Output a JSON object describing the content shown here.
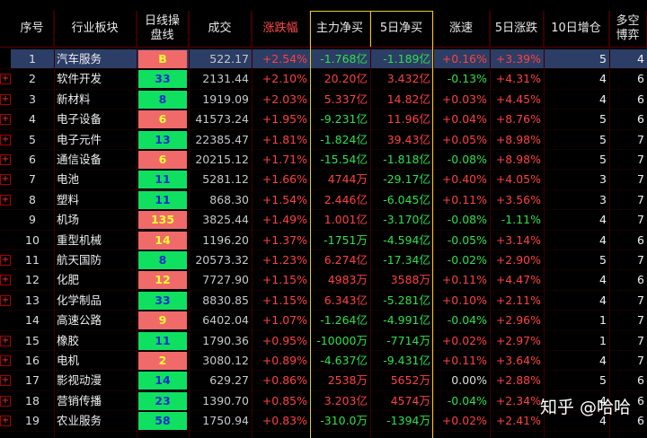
{
  "table": {
    "headers": [
      "序号",
      "行业板块",
      "日线操\n盘线",
      "成交",
      "涨跌幅",
      "主力净买",
      "5日净买",
      "涨速",
      "5日涨跌",
      "10日增仓",
      "多空\n博弈"
    ],
    "rows": [
      {
        "selected": true,
        "expandable": false,
        "line_color": "red",
        "cells": [
          "1",
          "汽车服务",
          "B",
          "522.17",
          "+2.54%",
          "-1.768亿",
          "-1.189亿",
          "+0.16%",
          "+3.39%",
          "5",
          "4"
        ]
      },
      {
        "expandable": true,
        "line_color": "green",
        "cells": [
          "2",
          "软件开发",
          "33",
          "2131.44",
          "+2.10%",
          "20.20亿",
          "3.432亿",
          "-0.13%",
          "+4.31%",
          "4",
          "6"
        ]
      },
      {
        "expandable": true,
        "line_color": "green",
        "cells": [
          "3",
          "新材料",
          "8",
          "1919.09",
          "+2.03%",
          "5.337亿",
          "14.82亿",
          "+0.03%",
          "+4.45%",
          "4",
          "6"
        ]
      },
      {
        "expandable": true,
        "line_color": "red",
        "cells": [
          "4",
          "电子设备",
          "6",
          "41573.24",
          "+1.95%",
          "-9.231亿",
          "11.96亿",
          "+0.04%",
          "+8.76%",
          "5",
          "6"
        ]
      },
      {
        "expandable": true,
        "line_color": "green",
        "cells": [
          "5",
          "电子元件",
          "13",
          "22385.47",
          "+1.81%",
          "-1.824亿",
          "39.43亿",
          "+0.05%",
          "+8.98%",
          "5",
          "7"
        ]
      },
      {
        "expandable": true,
        "line_color": "red",
        "cells": [
          "6",
          "通信设备",
          "6",
          "20215.12",
          "+1.71%",
          "-15.54亿",
          "-1.818亿",
          "-0.08%",
          "+8.98%",
          "5",
          "7"
        ]
      },
      {
        "expandable": true,
        "line_color": "green",
        "cells": [
          "7",
          "电池",
          "11",
          "5281.12",
          "+1.66%",
          "4744万",
          "-29.17亿",
          "+0.40%",
          "+4.05%",
          "3",
          "7"
        ]
      },
      {
        "expandable": true,
        "line_color": "green",
        "cells": [
          "8",
          "塑料",
          "11",
          "868.30",
          "+1.54%",
          "2.446亿",
          "-6.045亿",
          "+0.11%",
          "+3.56%",
          "3",
          "7"
        ]
      },
      {
        "expandable": false,
        "line_color": "red",
        "cells": [
          "9",
          "机场",
          "135",
          "3825.44",
          "+1.49%",
          "1.001亿",
          "-3.170亿",
          "-0.08%",
          "-1.11%",
          "4",
          "7"
        ]
      },
      {
        "expandable": false,
        "line_color": "red",
        "cells": [
          "10",
          "重型机械",
          "14",
          "1196.20",
          "+1.37%",
          "-1751万",
          "-4.594亿",
          "-0.05%",
          "+3.14%",
          "4",
          "6"
        ]
      },
      {
        "expandable": true,
        "line_color": "green",
        "cells": [
          "11",
          "航天国防",
          "8",
          "20573.32",
          "+1.23%",
          "6.274亿",
          "-17.34亿",
          "-0.02%",
          "+2.90%",
          "5",
          "7"
        ]
      },
      {
        "expandable": true,
        "line_color": "red",
        "cells": [
          "12",
          "化肥",
          "12",
          "7727.90",
          "+1.15%",
          "4983万",
          "3588万",
          "+0.11%",
          "+4.47%",
          "4",
          "6"
        ]
      },
      {
        "expandable": true,
        "line_color": "green",
        "cells": [
          "13",
          "化学制品",
          "33",
          "8830.85",
          "+1.15%",
          "6.343亿",
          "-5.281亿",
          "+0.10%",
          "+2.11%",
          "4",
          "7"
        ]
      },
      {
        "expandable": false,
        "line_color": "red",
        "cells": [
          "14",
          "高速公路",
          "9",
          "6402.04",
          "+1.07%",
          "-1.264亿",
          "-4.991亿",
          "-0.04%",
          "+2.96%",
          "1",
          "7"
        ]
      },
      {
        "expandable": true,
        "line_color": "green",
        "cells": [
          "15",
          "橡胶",
          "11",
          "1790.36",
          "+0.95%",
          "-10000万",
          "-7714万",
          "+0.02%",
          "+2.97%",
          "1",
          "7"
        ]
      },
      {
        "expandable": true,
        "line_color": "red",
        "cells": [
          "16",
          "电机",
          "2",
          "3080.12",
          "+0.89%",
          "-4.637亿",
          "-9.431亿",
          "+0.11%",
          "+3.64%",
          "4",
          "7"
        ]
      },
      {
        "expandable": true,
        "line_color": "green",
        "cells": [
          "17",
          "影视动漫",
          "14",
          "629.27",
          "+0.86%",
          "2538万",
          "5652万",
          "0.00%",
          "+2.88%",
          "5",
          "6"
        ]
      },
      {
        "expandable": true,
        "line_color": "green",
        "cells": [
          "18",
          "营销传播",
          "23",
          "1390.70",
          "+0.85%",
          "3.203亿",
          "4574万",
          "-0.04%",
          "+2.34%",
          "4",
          "6"
        ]
      },
      {
        "expandable": true,
        "line_color": "green",
        "cells": [
          "19",
          "农业服务",
          "58",
          "1750.94",
          "+0.83%",
          "-310.0万",
          "-1394万",
          "+0.02%",
          "+2.41%",
          "4",
          "6"
        ]
      }
    ]
  },
  "watermark": "知乎 @哈哈"
}
